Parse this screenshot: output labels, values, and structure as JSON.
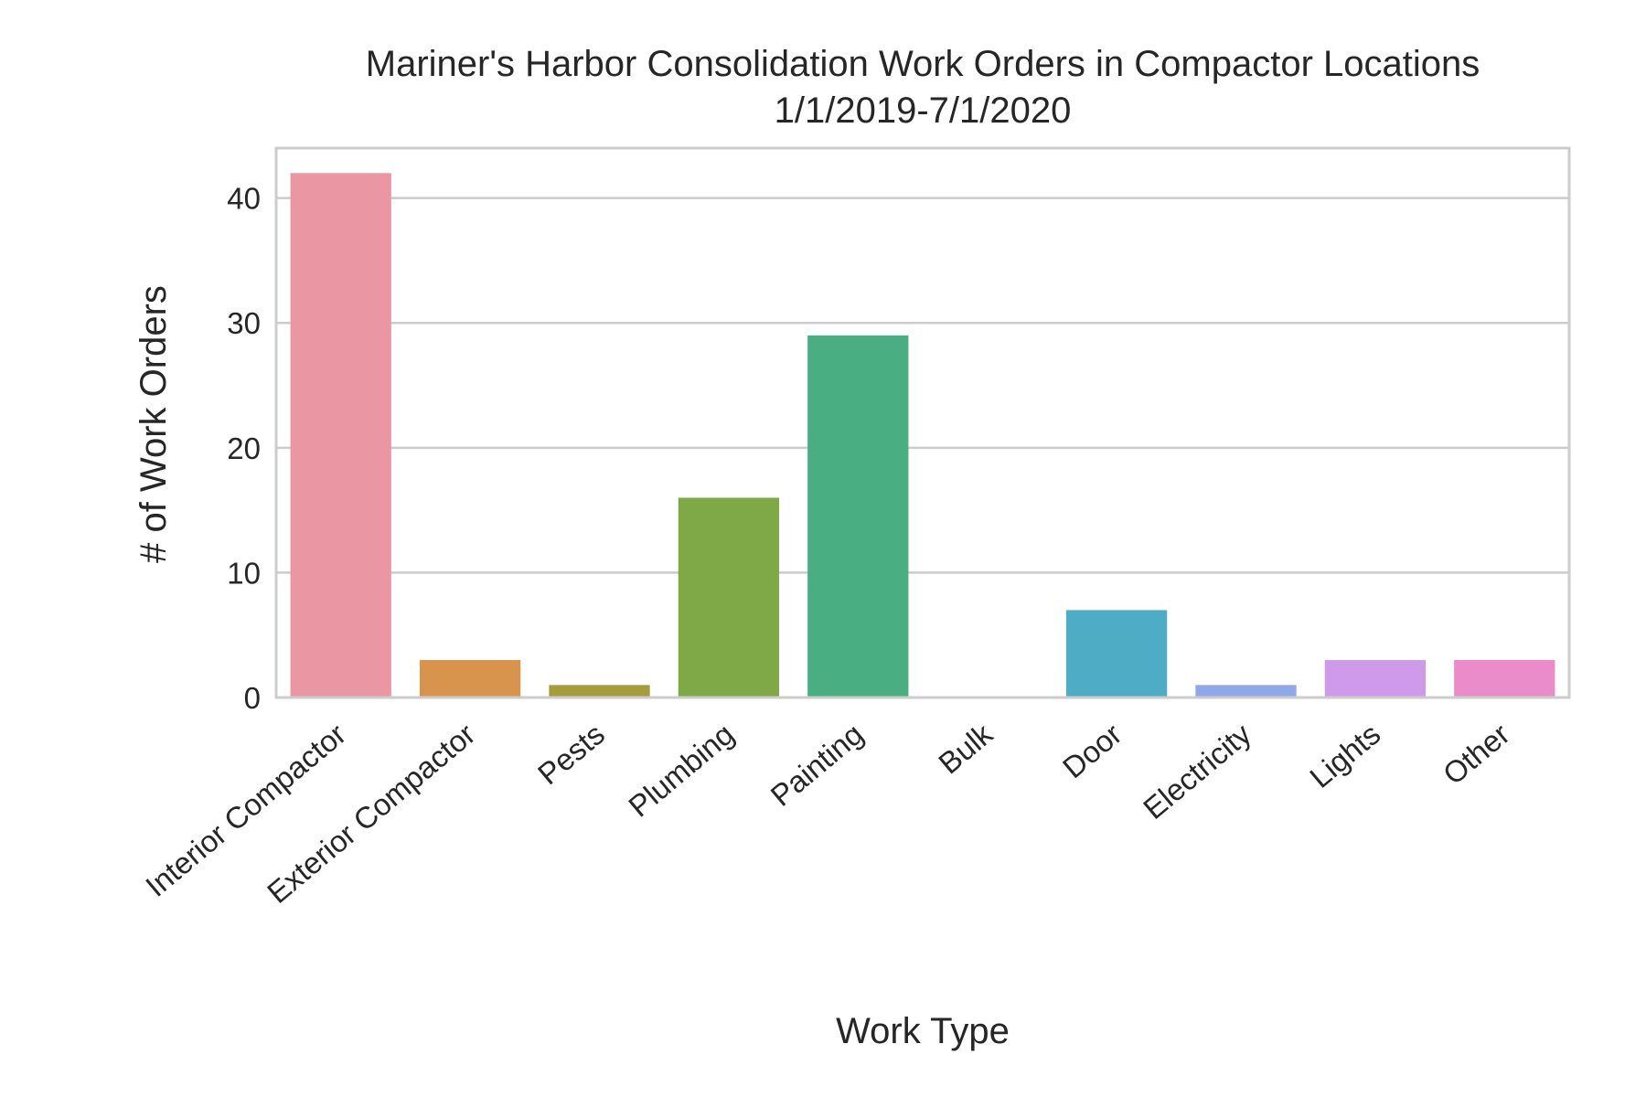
{
  "chart_data": {
    "type": "bar",
    "title": "Mariner's Harbor Consolidation Work Orders in Compactor Locations",
    "subtitle": "1/1/2019-7/1/2020",
    "xlabel": "Work Type",
    "ylabel": "# of Work Orders",
    "categories": [
      "Interior Compactor",
      "Exterior Compactor",
      "Pests",
      "Plumbing",
      "Painting",
      "Bulk",
      "Door",
      "Electricity",
      "Lights",
      "Other"
    ],
    "values": [
      42,
      3,
      1,
      16,
      29,
      0,
      7,
      1,
      3,
      3
    ],
    "colors": [
      "#ea96a3",
      "#d8944d",
      "#a59d3b",
      "#7fa947",
      "#49ae81",
      "#4bab9b",
      "#4eacc4",
      "#8fa8ea",
      "#cf9ae9",
      "#ea8cc9"
    ],
    "yticks": [
      0,
      10,
      20,
      30,
      40
    ],
    "ylim": [
      0,
      44
    ],
    "grid": true,
    "legend": "none"
  }
}
